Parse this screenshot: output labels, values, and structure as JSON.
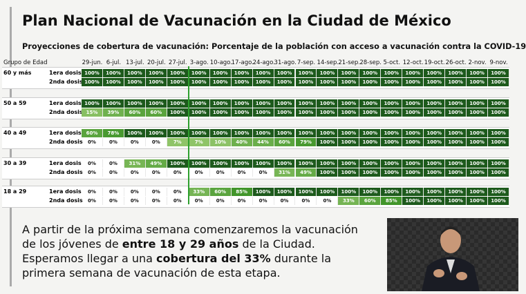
{
  "header": {
    "title": "Plan Nacional de Vacunación en la Ciudad de México",
    "subtitle": "Proyecciones de cobertura de vacunación: Porcentaje de la población con acceso a vacunación contra la COVID-19"
  },
  "table": {
    "corner": "Grupo de Edad",
    "columns": [
      "29-jun.",
      "6-jul.",
      "13-jul.",
      "20-jul.",
      "27-jul.",
      "3-ago.",
      "10-ago.",
      "17-ago.",
      "24-ago.",
      "31-ago.",
      "7-sep.",
      "14-sep.",
      "21-sep.",
      "28-sep.",
      "5-oct.",
      "12-oct.",
      "19-oct.",
      "26-oct.",
      "2-nov.",
      "9-nov."
    ],
    "groups": [
      {
        "label": "60 y más",
        "rows": [
          {
            "dose": "1era dosis",
            "cells": [
              "100%",
              "100%",
              "100%",
              "100%",
              "100%",
              "100%",
              "100%",
              "100%",
              "100%",
              "100%",
              "100%",
              "100%",
              "100%",
              "100%",
              "100%",
              "100%",
              "100%",
              "100%",
              "100%",
              "100%"
            ]
          },
          {
            "dose": "2nda dosis",
            "cells": [
              "100%",
              "100%",
              "100%",
              "100%",
              "100%",
              "100%",
              "100%",
              "100%",
              "100%",
              "100%",
              "100%",
              "100%",
              "100%",
              "100%",
              "100%",
              "100%",
              "100%",
              "100%",
              "100%",
              "100%"
            ]
          }
        ]
      },
      {
        "label": "50 a 59",
        "rows": [
          {
            "dose": "1era dosis",
            "cells": [
              "100%",
              "100%",
              "100%",
              "100%",
              "100%",
              "100%",
              "100%",
              "100%",
              "100%",
              "100%",
              "100%",
              "100%",
              "100%",
              "100%",
              "100%",
              "100%",
              "100%",
              "100%",
              "100%",
              "100%"
            ]
          },
          {
            "dose": "2nda dosis",
            "cells": [
              "15%",
              "39%",
              "60%",
              "60%",
              "100%",
              "100%",
              "100%",
              "100%",
              "100%",
              "100%",
              "100%",
              "100%",
              "100%",
              "100%",
              "100%",
              "100%",
              "100%",
              "100%",
              "100%",
              "100%"
            ]
          }
        ]
      },
      {
        "label": "40 a 49",
        "rows": [
          {
            "dose": "1era dosis",
            "cells": [
              "60%",
              "78%",
              "100%",
              "100%",
              "100%",
              "100%",
              "100%",
              "100%",
              "100%",
              "100%",
              "100%",
              "100%",
              "100%",
              "100%",
              "100%",
              "100%",
              "100%",
              "100%",
              "100%",
              "100%"
            ]
          },
          {
            "dose": "2nda dosis",
            "cells": [
              "0%",
              "0%",
              "0%",
              "0%",
              "7%",
              "7%",
              "10%",
              "40%",
              "44%",
              "60%",
              "79%",
              "100%",
              "100%",
              "100%",
              "100%",
              "100%",
              "100%",
              "100%",
              "100%",
              "100%"
            ]
          }
        ]
      },
      {
        "label": "30 a 39",
        "rows": [
          {
            "dose": "1era dosis",
            "cells": [
              "0%",
              "0%",
              "31%",
              "49%",
              "100%",
              "100%",
              "100%",
              "100%",
              "100%",
              "100%",
              "100%",
              "100%",
              "100%",
              "100%",
              "100%",
              "100%",
              "100%",
              "100%",
              "100%",
              "100%"
            ]
          },
          {
            "dose": "2nda dosis",
            "cells": [
              "0%",
              "0%",
              "0%",
              "0%",
              "0%",
              "0%",
              "0%",
              "0%",
              "0%",
              "31%",
              "49%",
              "100%",
              "100%",
              "100%",
              "100%",
              "100%",
              "100%",
              "100%",
              "100%",
              "100%"
            ]
          }
        ]
      },
      {
        "label": "18 a 29",
        "rows": [
          {
            "dose": "1era dosis",
            "cells": [
              "0%",
              "0%",
              "0%",
              "0%",
              "0%",
              "33%",
              "60%",
              "85%",
              "100%",
              "100%",
              "100%",
              "100%",
              "100%",
              "100%",
              "100%",
              "100%",
              "100%",
              "100%",
              "100%",
              "100%"
            ]
          },
          {
            "dose": "2nda dosis",
            "cells": [
              "0%",
              "0%",
              "0%",
              "0%",
              "0%",
              "0%",
              "0%",
              "0%",
              "0%",
              "0%",
              "0%",
              "0%",
              "33%",
              "60%",
              "85%",
              "100%",
              "100%",
              "100%",
              "100%",
              "100%"
            ]
          }
        ]
      }
    ]
  },
  "caption": {
    "segments": [
      {
        "text": "A partir de la próxima semana comenzaremos la vacunación de los jóvenes de ",
        "bold": false
      },
      {
        "text": "entre 18 y 29 años",
        "bold": true
      },
      {
        "text": " de la Ciudad. Esperamos llegar a una ",
        "bold": false
      },
      {
        "text": "cobertura del 33%",
        "bold": true
      },
      {
        "text": " durante la primera semana de vacunación de esta etapa.",
        "bold": false
      }
    ]
  }
}
